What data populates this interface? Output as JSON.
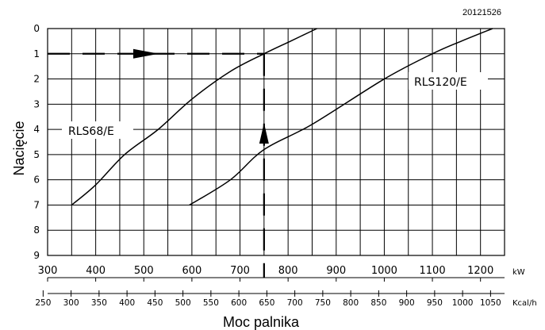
{
  "chart_data": {
    "type": "line",
    "doc_code": "20121526",
    "ylabel": "Nacięcie",
    "xlabel": "Moc palnika",
    "y_ticks": [
      0,
      1,
      2,
      3,
      4,
      5,
      6,
      7,
      8,
      9
    ],
    "ylim": [
      0,
      9
    ],
    "y_inverted": true,
    "kw_axis": {
      "unit": "kW",
      "range": [
        300,
        1250
      ],
      "ticks": [
        300,
        400,
        500,
        600,
        700,
        800,
        900,
        1000,
        1100,
        1200
      ]
    },
    "kcal_axis": {
      "unit": "Kcal/h",
      "ticks": [
        250,
        300,
        350,
        400,
        450,
        500,
        550,
        600,
        650,
        700,
        750,
        800,
        850,
        900,
        950,
        1000,
        1050
      ]
    },
    "grid": true,
    "series": [
      {
        "name": "RLS68/E",
        "points": [
          [
            350,
            7
          ],
          [
            400,
            6.2
          ],
          [
            460,
            5
          ],
          [
            530,
            4
          ],
          [
            600,
            2.8
          ],
          [
            680,
            1.7
          ],
          [
            750,
            1
          ],
          [
            805,
            0.5
          ],
          [
            860,
            0
          ]
        ]
      },
      {
        "name": "RLS120/E",
        "points": [
          [
            595,
            7
          ],
          [
            680,
            6
          ],
          [
            750,
            4.8
          ],
          [
            850,
            3.8
          ],
          [
            1000,
            2
          ],
          [
            1100,
            1
          ],
          [
            1160,
            0.5
          ],
          [
            1225,
            0
          ]
        ]
      }
    ],
    "example_path": {
      "cut": 1,
      "kw": 750
    }
  }
}
